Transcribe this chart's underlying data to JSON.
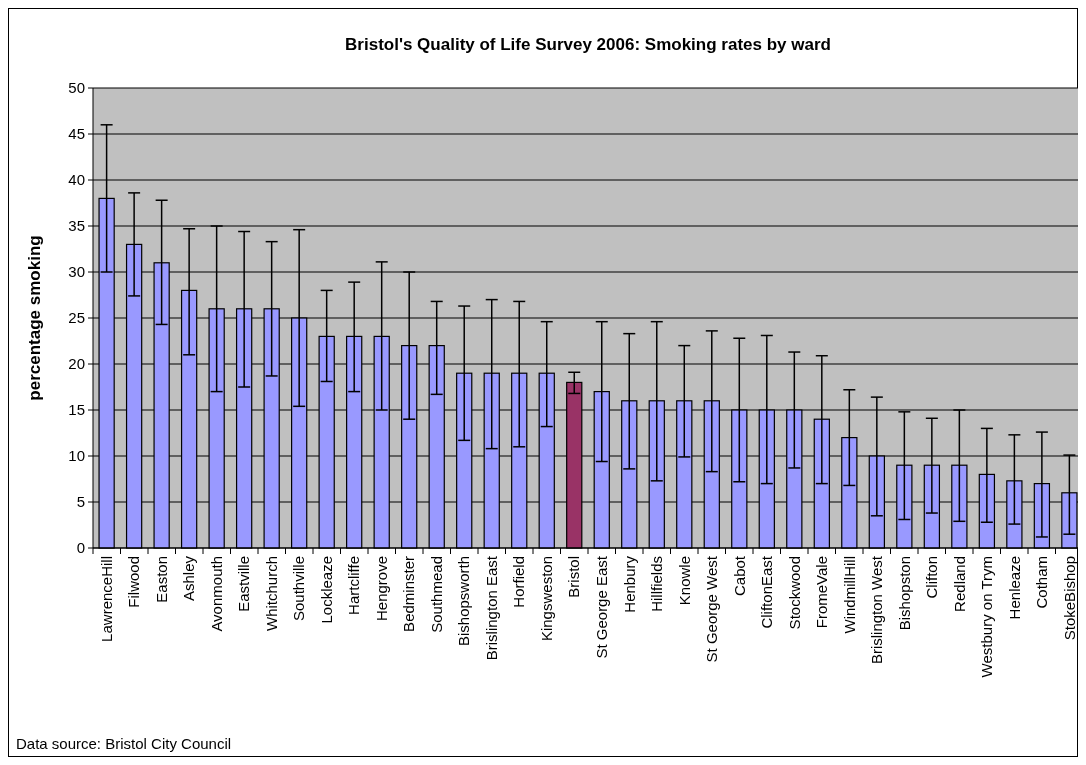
{
  "chart_data": {
    "type": "bar",
    "title": "Bristol's Quality of Life Survey 2006: Smoking rates by ward",
    "ylabel": "percentage smoking",
    "categories": [
      "LawrenceHill",
      "Filwood",
      "Easton",
      "Ashley",
      "Avonmouth",
      "Eastville",
      "Whitchurch",
      "Southville",
      "Lockleaze",
      "Hartcliffe",
      "Hengrove",
      "Bedminster",
      "Southmead",
      "Bishopsworth",
      "Brislington East",
      "Horfield",
      "Kingsweston",
      "Bristol",
      "St George East",
      "Henbury",
      "Hillfields",
      "Knowle",
      "St George West",
      "Cabot",
      "CliftonEast",
      "Stockwood",
      "FromeVale",
      "WindmillHill",
      "Brislington West",
      "Bishopston",
      "Clifton",
      "Redland",
      "Westbury on Trym",
      "Henleaze",
      "Cotham",
      "StokeBishop"
    ],
    "values": [
      38,
      33,
      31,
      28,
      26,
      26,
      26,
      25,
      23,
      23,
      23,
      22,
      22,
      19,
      19,
      19,
      19,
      18,
      17,
      16,
      16,
      16,
      16,
      15,
      15,
      15,
      14,
      12,
      10,
      9,
      9,
      9,
      8,
      7.3,
      7,
      6
    ],
    "colors": [
      "#9999ff",
      "#9999ff",
      "#9999ff",
      "#9999ff",
      "#9999ff",
      "#9999ff",
      "#9999ff",
      "#9999ff",
      "#9999ff",
      "#9999ff",
      "#9999ff",
      "#9999ff",
      "#9999ff",
      "#9999ff",
      "#9999ff",
      "#9999ff",
      "#9999ff",
      "#993366",
      "#9999ff",
      "#9999ff",
      "#9999ff",
      "#9999ff",
      "#9999ff",
      "#9999ff",
      "#9999ff",
      "#9999ff",
      "#9999ff",
      "#9999ff",
      "#9999ff",
      "#9999ff",
      "#9999ff",
      "#9999ff",
      "#9999ff",
      "#9999ff",
      "#9999ff",
      "#9999ff"
    ],
    "errors": [
      [
        30,
        46
      ],
      [
        27.4,
        38.6
      ],
      [
        24.3,
        37.8
      ],
      [
        21,
        34.7
      ],
      [
        17,
        35
      ],
      [
        17.5,
        34.4
      ],
      [
        18.7,
        33.3
      ],
      [
        15.4,
        34.6
      ],
      [
        18.1,
        28
      ],
      [
        17,
        28.9
      ],
      [
        15,
        31.1
      ],
      [
        14,
        30
      ],
      [
        16.7,
        26.8
      ],
      [
        11.7,
        26.3
      ],
      [
        10.8,
        27
      ],
      [
        11,
        26.8
      ],
      [
        13.2,
        24.6
      ],
      [
        16.8,
        19.1
      ],
      [
        9.4,
        24.6
      ],
      [
        8.6,
        23.3
      ],
      [
        7.3,
        24.6
      ],
      [
        9.9,
        22
      ],
      [
        8.3,
        23.6
      ],
      [
        7.2,
        22.8
      ],
      [
        7,
        23.1
      ],
      [
        8.7,
        21.3
      ],
      [
        7,
        20.9
      ],
      [
        6.8,
        17.2
      ],
      [
        3.5,
        16.4
      ],
      [
        3.1,
        14.8
      ],
      [
        3.8,
        14.1
      ],
      [
        2.9,
        15
      ],
      [
        2.8,
        13
      ],
      [
        2.6,
        12.3
      ],
      [
        1.2,
        12.6
      ],
      [
        1.5,
        10.1
      ]
    ],
    "ylim": [
      0,
      50
    ],
    "yticks": [
      0,
      5,
      10,
      15,
      20,
      25,
      30,
      35,
      40,
      45,
      50
    ],
    "grid": "y",
    "annotations": [
      "Data source: Bristol City Council"
    ]
  }
}
